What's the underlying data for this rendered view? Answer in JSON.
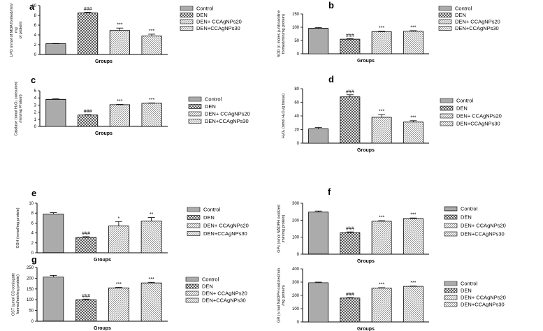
{
  "figure": {
    "legend_entries": [
      "Control",
      "DEN",
      "DEN+ CCAgNPs20",
      "DEN+CCAgNPs30"
    ],
    "patterns": [
      "pat-control",
      "pat-den",
      "pat-d20",
      "pat-d30"
    ],
    "bar_fill": "#ffffff",
    "bar_stroke": "#000000"
  },
  "chart_data": [
    {
      "type": "bar",
      "letter": "a",
      "categories": [
        "Control",
        "DEN",
        "DEN+ CCAgNPs20",
        "DEN+CCAgNPs30"
      ],
      "values": [
        2.2,
        8.5,
        4.9,
        3.8
      ],
      "errors": [
        0.05,
        0.15,
        0.5,
        0.35
      ],
      "annotations": [
        "",
        "###",
        "***",
        "***"
      ],
      "ylim": [
        0,
        10
      ],
      "yticks": [
        0,
        2,
        4,
        6,
        8,
        10
      ],
      "ylabel": [
        "LPO (nmol of MDA formed/min/",
        "mg",
        "of protein)"
      ],
      "xlabel": "Groups",
      "legend": [
        "Control",
        "DEN",
        "DEN+ CCAgNPs20",
        "DEN+CCAgNPs30"
      ]
    },
    {
      "type": "bar",
      "letter": "b",
      "categories": [
        "Control",
        "DEN",
        "DEN+ CCAgNPs20",
        "DEN+CCAgNPs30"
      ],
      "values": [
        96,
        55,
        83,
        85
      ],
      "errors": [
        3,
        2,
        2,
        2
      ],
      "annotations": [
        "",
        "###",
        "***",
        "***"
      ],
      "ylim": [
        0,
        150
      ],
      "yticks": [
        0,
        50,
        100,
        150
      ],
      "ylabel": [
        "SOD (n moles p-nitroaniline",
        "formed/min/mg protein)"
      ],
      "xlabel": "Groups",
      "legend": [
        "Control",
        "DEN",
        "DEN+ CCAgNPs20",
        "DEN+CCAgNPs30"
      ]
    },
    {
      "type": "bar",
      "letter": "c",
      "categories": [
        "Control",
        "DEN",
        "DEN+ CCAgNPs20",
        "DEN+CCAgNPs30"
      ],
      "values": [
        3.8,
        1.6,
        3.05,
        3.25
      ],
      "errors": [
        0.08,
        0.05,
        0.04,
        0.05
      ],
      "annotations": [
        "",
        "###",
        "***",
        "***"
      ],
      "ylim": [
        0,
        5
      ],
      "yticks": [
        0,
        1,
        2,
        3,
        4,
        5
      ],
      "ylabel": [
        "Catalase (nmol H₂O₂ consumed",
        "/min/mg Protein)"
      ],
      "xlabel": "Groups",
      "legend": [
        "Control",
        "DEN",
        "DEN+ CCAgNPs20",
        "DEN+CCAgNPs30"
      ]
    },
    {
      "type": "bar",
      "letter": "d",
      "categories": [
        "Control",
        "DEN",
        "DEN+ CCAgNPs20",
        "DEN+CCAgNPs30"
      ],
      "values": [
        21,
        68,
        38,
        31
      ],
      "errors": [
        2,
        3,
        4,
        2
      ],
      "annotations": [
        "",
        "###",
        "***",
        "***"
      ],
      "ylim": [
        0,
        80
      ],
      "yticks": [
        0,
        20,
        40,
        60,
        80
      ],
      "ylabel": [
        "H₂O₂ (nmol H₂O₂/g tissue)"
      ],
      "xlabel": "Groups",
      "legend": [
        "Control",
        "DEN",
        "DEN+ CCAgNPs20",
        "DEN+CCAgNPs30"
      ]
    },
    {
      "type": "bar",
      "letter": "e",
      "categories": [
        "Control",
        "DEN",
        "DEN+ CCAgNPs20",
        "DEN+CCAgNPs30"
      ],
      "values": [
        7.8,
        3.1,
        5.4,
        6.4
      ],
      "errors": [
        0.3,
        0.15,
        0.9,
        0.7
      ],
      "annotations": [
        "",
        "###",
        "*",
        "**"
      ],
      "ylim": [
        0,
        10
      ],
      "yticks": [
        0,
        2,
        4,
        6,
        8,
        10
      ],
      "ylabel": [
        "GSH (mmol/mg protein)"
      ],
      "xlabel": "Groups",
      "legend": [
        "Control",
        "DEN",
        "DEN+ CCAgNPs20",
        "DEN+CCAgNPs30"
      ]
    },
    {
      "type": "bar",
      "letter": "f",
      "categories": [
        "Control",
        "DEN",
        "DEN+ CCAgNPs20",
        "DEN+CCAgNPs30"
      ],
      "values": [
        248,
        127,
        194,
        210
      ],
      "errors": [
        6,
        4,
        3,
        3
      ],
      "annotations": [
        "",
        "###",
        "***",
        "***"
      ],
      "ylim": [
        0,
        300
      ],
      "yticks": [
        0,
        100,
        200,
        300
      ],
      "ylabel": [
        "GPx (nmol NADPH oxidized",
        "/min/mg protein)"
      ],
      "xlabel": "Groups",
      "legend": [
        "Control",
        "DEN",
        "DEN+ CCAgNPs20",
        "DEN+CCAgNPs30"
      ]
    },
    {
      "type": "bar",
      "letter": "g",
      "categories": [
        "Control",
        "DEN",
        "DEN+ CCAgNPs20",
        "DEN+CCAgNPs30"
      ],
      "values": [
        205,
        100,
        155,
        178
      ],
      "errors": [
        8,
        3,
        3,
        3
      ],
      "annotations": [
        "",
        "###",
        "***",
        "***"
      ],
      "ylim": [
        0,
        250
      ],
      "yticks": [
        0,
        50,
        100,
        150,
        200,
        250
      ],
      "ylabel": [
        "GST (µmol CD conjugate",
        "formed/min/mg protein)"
      ],
      "xlabel": "Groups",
      "legend": [
        "Control",
        "DEN",
        "DEN+ CCAgNPs20",
        "DEN+CCAgNPs30"
      ]
    },
    {
      "type": "bar",
      "letter": "",
      "categories": [
        "Control",
        "DEN",
        "DEN+ CCAgNPs20",
        "DEN+CCAgNPs30"
      ],
      "values": [
        295,
        180,
        255,
        268
      ],
      "errors": [
        5,
        3,
        3,
        3
      ],
      "annotations": [
        "",
        "###",
        "***",
        "***"
      ],
      "ylim": [
        0,
        400
      ],
      "yticks": [
        0,
        100,
        200,
        300,
        400
      ],
      "ylabel": [
        "GR (n mol NADPH oxidized/min",
        "/mg protein)"
      ],
      "xlabel": "Groups",
      "legend": [
        "Control",
        "DEN",
        "DEN+ CCAgNPs20",
        "DEN+CCAgNPs30"
      ]
    }
  ]
}
